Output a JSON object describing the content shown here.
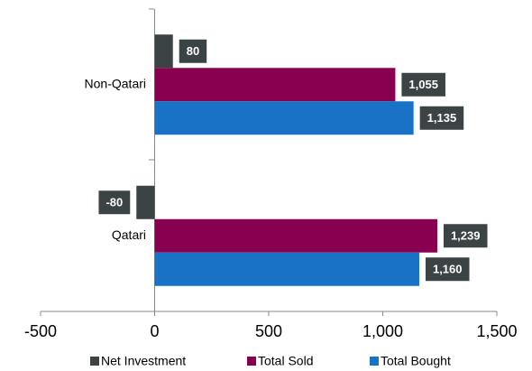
{
  "chart_data": {
    "type": "barh",
    "categories": [
      "Non-Qatari",
      "Qatari"
    ],
    "series": [
      {
        "name": "Net Investment",
        "color": "#3c4345",
        "values": [
          80,
          -80
        ],
        "value_labels": [
          "80",
          "-80"
        ]
      },
      {
        "name": "Total Sold",
        "color": "#8a0050",
        "values": [
          1055,
          1239
        ],
        "value_labels": [
          "1,055",
          "1,239"
        ]
      },
      {
        "name": "Total Bought",
        "color": "#1a72c6",
        "values": [
          1135,
          1160
        ],
        "value_labels": [
          "1,135",
          "1,160"
        ]
      }
    ],
    "xlim": [
      -500,
      1500
    ],
    "xticks": [
      -500,
      0,
      500,
      {
        "value": 1000,
        "label": "1,000"
      },
      {
        "value": 1500,
        "label": "1,500"
      }
    ],
    "legend": "bottom"
  }
}
